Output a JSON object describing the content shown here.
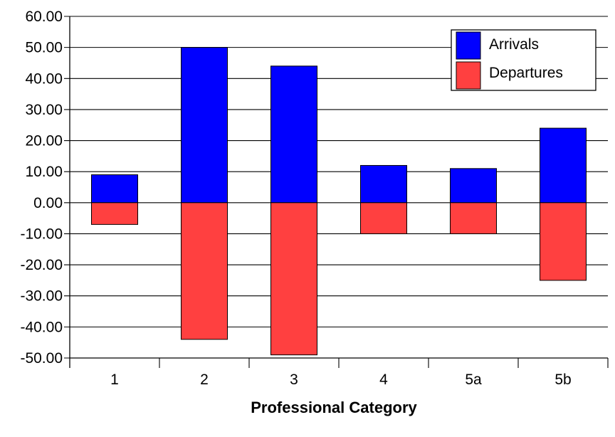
{
  "chart_data": {
    "type": "bar",
    "stacked": true,
    "title": "",
    "xlabel": "Professional Category",
    "ylabel": "",
    "categories": [
      "1",
      "2",
      "3",
      "4",
      "5a",
      "5b"
    ],
    "series": [
      {
        "name": "Arrivals",
        "color": "#0000ff",
        "values": [
          9,
          50,
          44,
          12,
          11,
          24
        ]
      },
      {
        "name": "Departures",
        "color": "#ff4040",
        "values": [
          -7,
          -44,
          -49,
          -10,
          -10,
          -25
        ]
      }
    ],
    "ylim": [
      -50,
      60
    ],
    "yticks": [
      "60.00",
      "50.00",
      "40.00",
      "30.00",
      "20.00",
      "10.00",
      "0.00",
      "-10.00",
      "-20.00",
      "-30.00",
      "-40.00",
      "-50.00"
    ],
    "grid": true,
    "legend": "top-right"
  }
}
